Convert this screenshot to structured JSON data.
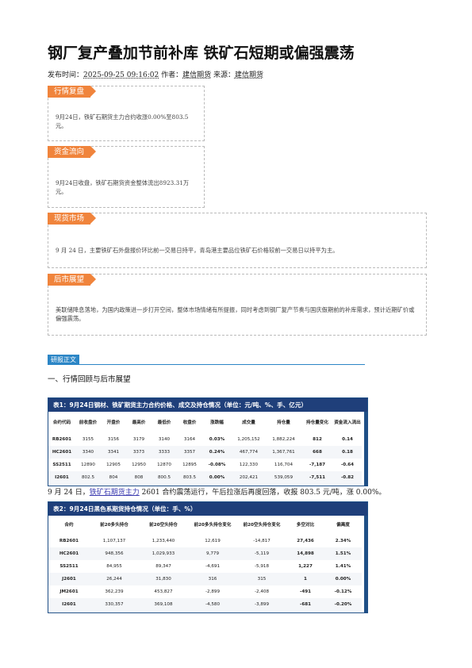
{
  "article": {
    "title": "钢厂复产叠加节前补库 铁矿石短期或偏强震荡",
    "meta_prefix": "发布时间：",
    "datetime": "2025-09-25 09:16:02",
    "author_label": " 作者：",
    "author": "建信期货",
    "source_label": " 来源：",
    "source": "建信期货"
  },
  "boxes": [
    {
      "tag": "行情复盘",
      "text": "9月24日，铁矿石期货主力合约收涨0.00%至803.5元。"
    },
    {
      "tag": "资金流向",
      "text": "9月24日收盘，铁矿石期货资金整体流出8923.31万元。"
    },
    {
      "tag": "现货市场",
      "text": "9 月 24 日，主要铁矿石外盘报价环比前一交易日持平，青岛港主要品位铁矿石价格较前一交易日以持平为主。"
    },
    {
      "tag": "后市展望",
      "text": "美联储降息落地，为国内政策进一步打开空间，整体市场情绪有所提振，同时考虑到钢厂复产节奏与国庆假期前的补库需求，预计近期矿价或偏强震荡。"
    }
  ],
  "section": {
    "tag": "研报正文",
    "heading": "一、行情回顾与后市展望"
  },
  "table1": {
    "title": "表1：9月24日钢材、铁矿期货主力合约价格、成交及持仓情况（单位：元/吨、%、手、亿元）",
    "headers": [
      "合约代码",
      "前收盘价",
      "开盘价",
      "最高价",
      "最低价",
      "收盘价",
      "涨跌幅",
      "成交量",
      "持仓量",
      "持仓量变化",
      "资金流入流出"
    ],
    "rows": [
      [
        "RB2601",
        "3155",
        "3156",
        "3179",
        "3140",
        "3164",
        "0.03%",
        "1,205,152",
        "1,882,224",
        "812",
        "0.14"
      ],
      [
        "HC2601",
        "3340",
        "3341",
        "3373",
        "3333",
        "3357",
        "0.24%",
        "467,774",
        "1,367,761",
        "668",
        "0.18"
      ],
      [
        "SS2511",
        "12890",
        "12905",
        "12950",
        "12870",
        "12895",
        "-0.08%",
        "122,330",
        "116,704",
        "-7,187",
        "-0.64"
      ],
      [
        "I2601",
        "802.5",
        "804",
        "808",
        "800.5",
        "803.5",
        "0.00%",
        "202,421",
        "539,059",
        "-7,511",
        "-0.82"
      ]
    ],
    "colors": [
      [
        "",
        "",
        "",
        "",
        "",
        "",
        "up",
        "",
        "",
        "up",
        "up"
      ],
      [
        "",
        "",
        "",
        "",
        "",
        "",
        "up",
        "",
        "",
        "up",
        "up"
      ],
      [
        "",
        "",
        "",
        "",
        "",
        "",
        "down",
        "",
        "",
        "down",
        "down"
      ],
      [
        "",
        "",
        "",
        "",
        "",
        "",
        "flat",
        "",
        "",
        "down",
        "down"
      ]
    ]
  },
  "paragraph": {
    "before": "9 月 24 日，",
    "link": "铁矿石期货主力",
    "after": " 2601 合约震荡运行，午后拉涨后再度回落，收报 803.5 元/吨，涨 0.00%。"
  },
  "table2": {
    "title": "表2：9月24日黑色系期货持仓情况（单位：手、%）",
    "headers": [
      "合约",
      "前20多头持仓",
      "前20空头持仓",
      "前20多头持仓变化",
      "前20空头持仓变化",
      "多空对比",
      "偏离度"
    ],
    "rows": [
      [
        "RB2601",
        "1,107,137",
        "1,233,440",
        "12,619",
        "-14,817",
        "27,436",
        "2.34%"
      ],
      [
        "HC2601",
        "948,356",
        "1,029,933",
        "9,779",
        "-5,119",
        "14,898",
        "1.51%"
      ],
      [
        "SS2511",
        "84,955",
        "89,347",
        "-4,691",
        "-5,918",
        "1,227",
        "1.41%"
      ],
      [
        "J2601",
        "26,244",
        "31,830",
        "316",
        "315",
        "1",
        "0.00%"
      ],
      [
        "JM2601",
        "362,239",
        "453,827",
        "-2,899",
        "-2,408",
        "-491",
        "-0.12%"
      ],
      [
        "I2601",
        "330,357",
        "369,108",
        "-4,580",
        "-3,899",
        "-681",
        "-0.20%"
      ]
    ],
    "colors": [
      [
        "",
        "",
        "",
        "",
        "",
        "up",
        "up"
      ],
      [
        "",
        "",
        "",
        "",
        "",
        "up",
        "up"
      ],
      [
        "",
        "",
        "",
        "",
        "",
        "up",
        "up"
      ],
      [
        "",
        "",
        "",
        "",
        "",
        "up",
        "up"
      ],
      [
        "",
        "",
        "",
        "",
        "",
        "down",
        "down"
      ],
      [
        "",
        "",
        "",
        "",
        "",
        "down",
        "down"
      ]
    ]
  }
}
